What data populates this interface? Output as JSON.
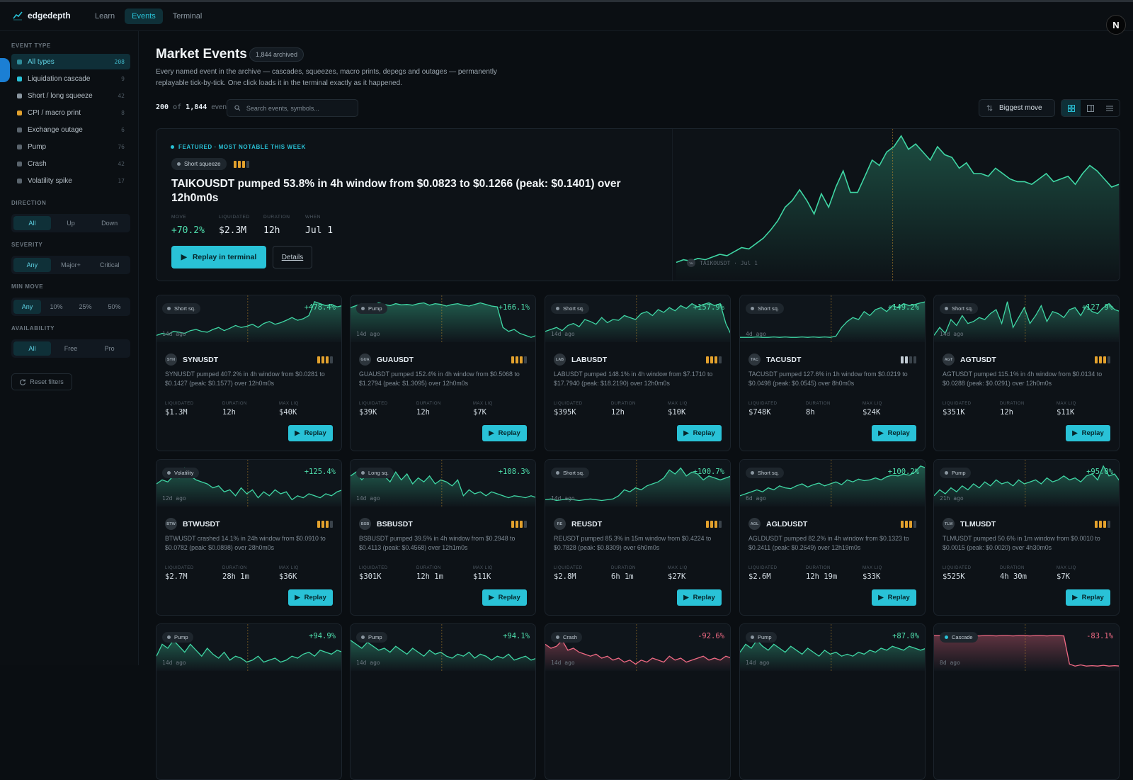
{
  "app": {
    "name": "edgedepth",
    "avatar_letter": "N"
  },
  "nav": [
    {
      "label": "Learn"
    },
    {
      "label": "Events"
    },
    {
      "label": "Terminal"
    }
  ],
  "sidebar": {
    "event_type_heading": "EVENT TYPE",
    "event_types": [
      {
        "label": "All types",
        "count": "208",
        "color": "#2e8c9a"
      },
      {
        "label": "Liquidation cascade",
        "count": "9",
        "color": "#29c2d7"
      },
      {
        "label": "Short / long squeeze",
        "count": "42",
        "color": "#8a96a0"
      },
      {
        "label": "CPI / macro print",
        "count": "8",
        "color": "#e2a12d"
      },
      {
        "label": "Exchange outage",
        "count": "6",
        "color": "#5a646d"
      },
      {
        "label": "Pump",
        "count": "76",
        "color": "#5a646d"
      },
      {
        "label": "Crash",
        "count": "42",
        "color": "#5a646d"
      },
      {
        "label": "Volatility spike",
        "count": "17",
        "color": "#5a646d"
      }
    ],
    "direction_heading": "DIRECTION",
    "direction": [
      "All",
      "Up",
      "Down"
    ],
    "severity_heading": "SEVERITY",
    "severity": [
      "Any",
      "Major+",
      "Critical"
    ],
    "min_move_heading": "MIN MOVE",
    "min_move": [
      "Any",
      "10%",
      "25%",
      "50%"
    ],
    "availability_heading": "AVAILABILITY",
    "availability": [
      "All",
      "Free",
      "Pro"
    ],
    "reset_label": "Reset filters"
  },
  "header": {
    "title": "Market Events",
    "archived": "1,844 archived",
    "description": "Every named event in the archive — cascades, squeezes, macro prints, depegs and outages — permanently replayable tick-by-tick. One click loads it in the terminal exactly as it happened.",
    "shown": "200",
    "of": "of",
    "total": "1,844",
    "events_word": "events",
    "search_placeholder": "Search events, symbols...",
    "sort_label": "Biggest move"
  },
  "featured": {
    "tag": "FEATURED · MOST NOTABLE THIS WEEK",
    "pill": "Short squeeze",
    "title": "TAIKOUSDT pumped 53.8% in 4h window from $0.0823 to $0.1266 (peak: $0.1401) over 12h0m0s",
    "stats": [
      {
        "label": "MOVE",
        "value": "+70.2%"
      },
      {
        "label": "LIQUIDATED",
        "value": "$2.3M"
      },
      {
        "label": "DURATION",
        "value": "12h"
      },
      {
        "label": "WHEN",
        "value": "Jul 1"
      }
    ],
    "replay_label": "Replay in terminal",
    "details_label": "Details",
    "chart_label": "TAIKOUSDT · Jul 1",
    "coin": "TAI",
    "series": [
      0.04,
      0.06,
      0.05,
      0.07,
      0.06,
      0.08,
      0.1,
      0.09,
      0.12,
      0.15,
      0.14,
      0.18,
      0.22,
      0.28,
      0.35,
      0.45,
      0.5,
      0.58,
      0.5,
      0.4,
      0.55,
      0.45,
      0.6,
      0.72,
      0.56,
      0.56,
      0.68,
      0.8,
      0.76,
      0.86,
      0.9,
      0.98,
      0.88,
      0.92,
      0.86,
      0.8,
      0.9,
      0.84,
      0.82,
      0.74,
      0.78,
      0.7,
      0.7,
      0.68,
      0.74,
      0.7,
      0.66,
      0.64,
      0.64,
      0.62,
      0.66,
      0.7,
      0.64,
      0.66,
      0.68,
      0.62,
      0.7,
      0.76,
      0.72,
      0.66,
      0.6,
      0.62
    ]
  },
  "cards": [
    {
      "type": "Short sq.",
      "ago": "14d ago",
      "pct": "+478.4%",
      "symbol": "SYNUSDT",
      "coin": "SYN",
      "sev": "orange3",
      "desc": "SYNUSDT pumped 407.2% in 4h window from $0.0281 to $0.1427 (peak: $0.1577) over 12h0m0s",
      "liq": "$1.3M",
      "dur": "12h",
      "max": "$40K",
      "series": [
        0.1,
        0.15,
        0.12,
        0.2,
        0.18,
        0.15,
        0.22,
        0.25,
        0.2,
        0.18,
        0.25,
        0.3,
        0.22,
        0.28,
        0.35,
        0.3,
        0.33,
        0.38,
        0.3,
        0.4,
        0.45,
        0.38,
        0.42,
        0.48,
        0.55,
        0.48,
        0.52,
        0.6,
        0.95,
        0.9,
        0.85,
        0.88,
        0.82,
        0.85
      ]
    },
    {
      "type": "Pump",
      "ago": "14d ago",
      "pct": "+166.1%",
      "symbol": "GUAUSDT",
      "coin": "GUA",
      "sev": "orange3",
      "desc": "GUAUSDT pumped 152.4% in 4h window from $0.5068 to $1.2794 (peak: $1.3095) over 12h0m0s",
      "liq": "$39K",
      "dur": "12h",
      "max": "$7K",
      "series": [
        0.8,
        0.85,
        0.9,
        0.82,
        0.86,
        0.92,
        0.88,
        0.85,
        0.9,
        0.87,
        0.88,
        0.86,
        0.9,
        0.92,
        0.86,
        0.9,
        0.88,
        0.84,
        0.88,
        0.9,
        0.86,
        0.84,
        0.88,
        0.92,
        0.88,
        0.84,
        0.82,
        0.3,
        0.2,
        0.25,
        0.15,
        0.1,
        0.05,
        0.1
      ]
    },
    {
      "type": "Short sq.",
      "ago": "14d ago",
      "pct": "+157.9%",
      "symbol": "LABUSDT",
      "coin": "LAB",
      "sev": "orange3",
      "desc": "LABUSDT pumped 148.1% in 4h window from $7.1710 to $17.7940 (peak: $18.2190) over 12h0m0s",
      "liq": "$395K",
      "dur": "12h",
      "max": "$10K",
      "series": [
        0.2,
        0.25,
        0.3,
        0.22,
        0.35,
        0.4,
        0.32,
        0.5,
        0.45,
        0.38,
        0.55,
        0.42,
        0.5,
        0.48,
        0.6,
        0.55,
        0.5,
        0.65,
        0.7,
        0.6,
        0.75,
        0.68,
        0.8,
        0.72,
        0.85,
        0.78,
        0.9,
        0.82,
        0.88,
        0.92,
        0.85,
        0.9,
        0.4,
        0.1
      ]
    },
    {
      "type": "Short sq.",
      "ago": "4d ago",
      "pct": "+149.2%",
      "symbol": "TACUSDT",
      "coin": "TAC",
      "sev": "white2",
      "desc": "TACUSDT pumped 127.6% in 1h window from $0.0219 to $0.0498 (peak: $0.0545) over 8h0m0s",
      "liq": "$748K",
      "dur": "8h",
      "max": "$24K",
      "series": [
        0.05,
        0.05,
        0.05,
        0.06,
        0.05,
        0.05,
        0.06,
        0.05,
        0.06,
        0.05,
        0.05,
        0.06,
        0.05,
        0.06,
        0.05,
        0.06,
        0.05,
        0.08,
        0.3,
        0.45,
        0.55,
        0.5,
        0.7,
        0.6,
        0.75,
        0.8,
        0.7,
        0.85,
        0.8,
        0.9,
        0.85,
        0.88,
        0.92,
        0.95
      ]
    },
    {
      "type": "Short sq.",
      "ago": "14d ago",
      "pct": "+127.9%",
      "symbol": "AGTUSDT",
      "coin": "AGT",
      "sev": "orange3",
      "desc": "AGTUSDT pumped 115.1% in 4h window from $0.0134 to $0.0288 (peak: $0.0291) over 12h0m0s",
      "liq": "$351K",
      "dur": "12h",
      "max": "$11K",
      "series": [
        0.1,
        0.3,
        0.15,
        0.5,
        0.35,
        0.6,
        0.4,
        0.45,
        0.55,
        0.5,
        0.65,
        0.75,
        0.4,
        0.95,
        0.3,
        0.55,
        0.8,
        0.4,
        0.6,
        0.85,
        0.45,
        0.7,
        0.65,
        0.55,
        0.75,
        0.8,
        0.6,
        0.85,
        0.7,
        0.65,
        0.8,
        0.9,
        0.75,
        0.7
      ]
    },
    {
      "type": "Volatility",
      "ago": "12d ago",
      "pct": "+125.4%",
      "symbol": "BTWUSDT",
      "coin": "BTW",
      "sev": "orange3",
      "desc": "BTWUSDT crashed 14.1% in 24h window from $0.0910 to $0.0782 (peak: $0.0898) over 28h0m0s",
      "liq": "$2.7M",
      "dur": "28h 1m",
      "max": "$36K",
      "series": [
        0.5,
        0.6,
        0.55,
        0.7,
        0.65,
        0.9,
        0.7,
        0.6,
        0.55,
        0.5,
        0.4,
        0.45,
        0.3,
        0.35,
        0.2,
        0.4,
        0.25,
        0.35,
        0.15,
        0.3,
        0.2,
        0.35,
        0.25,
        0.3,
        0.1,
        0.2,
        0.15,
        0.25,
        0.2,
        0.15,
        0.25,
        0.2,
        0.3,
        0.35
      ]
    },
    {
      "type": "Long sq.",
      "ago": "14d ago",
      "pct": "+108.3%",
      "symbol": "BSBUSDT",
      "coin": "BSB",
      "sev": "orange3",
      "desc": "BSBUSDT pumped 39.5% in 4h window from $0.2948 to $0.4113 (peak: $0.4568) over 12h1m0s",
      "liq": "$301K",
      "dur": "12h 1m",
      "max": "$11K",
      "series": [
        0.7,
        0.8,
        0.6,
        0.75,
        0.65,
        0.85,
        0.7,
        0.55,
        0.8,
        0.6,
        0.75,
        0.5,
        0.65,
        0.55,
        0.7,
        0.5,
        0.6,
        0.55,
        0.45,
        0.6,
        0.2,
        0.35,
        0.25,
        0.3,
        0.2,
        0.3,
        0.25,
        0.2,
        0.15,
        0.2,
        0.18,
        0.15,
        0.2,
        0.15
      ]
    },
    {
      "type": "Short sq.",
      "ago": "14d ago",
      "pct": "+100.7%",
      "symbol": "REUSDT",
      "coin": "RE",
      "sev": "orange3",
      "desc": "REUSDT pumped 85.3% in 15m window from $0.4224 to $0.7828 (peak: $0.8309) over 6h0m0s",
      "liq": "$2.8M",
      "dur": "6h 1m",
      "max": "$27K",
      "series": [
        0.1,
        0.12,
        0.08,
        0.1,
        0.12,
        0.1,
        0.08,
        0.1,
        0.12,
        0.1,
        0.08,
        0.1,
        0.12,
        0.2,
        0.35,
        0.3,
        0.4,
        0.35,
        0.45,
        0.5,
        0.55,
        0.65,
        0.85,
        0.75,
        0.9,
        0.7,
        0.8,
        0.75,
        0.6,
        0.7,
        0.65,
        0.6,
        0.65,
        0.7
      ]
    },
    {
      "type": "Short sq.",
      "ago": "6d ago",
      "pct": "+100.2%",
      "symbol": "AGLDUSDT",
      "coin": "AGL",
      "sev": "orange3",
      "desc": "AGLDUSDT pumped 82.2% in 4h window from $0.1323 to $0.2411 (peak: $0.2649) over 12h19m0s",
      "liq": "$2.6M",
      "dur": "12h 19m",
      "max": "$33K",
      "series": [
        0.2,
        0.25,
        0.3,
        0.35,
        0.3,
        0.4,
        0.35,
        0.45,
        0.4,
        0.38,
        0.45,
        0.5,
        0.42,
        0.48,
        0.52,
        0.45,
        0.5,
        0.55,
        0.48,
        0.6,
        0.55,
        0.62,
        0.58,
        0.6,
        0.65,
        0.6,
        0.68,
        0.72,
        0.7,
        0.75,
        0.72,
        0.8,
        0.95,
        0.9
      ]
    },
    {
      "type": "Pump",
      "ago": "21h ago",
      "pct": "+95.0%",
      "symbol": "TLMUSDT",
      "coin": "TLM",
      "sev": "orange3",
      "desc": "TLMUSDT pumped 50.6% in 1m window from $0.0010 to $0.0015 (peak: $0.0020) over 4h30m0s",
      "liq": "$525K",
      "dur": "4h 30m",
      "max": "$7K",
      "series": [
        0.2,
        0.35,
        0.25,
        0.4,
        0.3,
        0.45,
        0.35,
        0.5,
        0.4,
        0.55,
        0.45,
        0.6,
        0.5,
        0.55,
        0.45,
        0.6,
        0.5,
        0.55,
        0.6,
        0.5,
        0.65,
        0.55,
        0.6,
        0.7,
        0.6,
        0.65,
        0.55,
        0.7,
        0.75,
        0.6,
        0.95,
        0.7,
        0.75,
        0.55
      ]
    },
    {
      "type": "Pump",
      "ago": "14d ago",
      "pct": "+94.9%",
      "symbol": "",
      "coin": "",
      "sev": "",
      "desc": "",
      "liq": "",
      "dur": "",
      "max": "",
      "series": [
        0.3,
        0.6,
        0.5,
        0.7,
        0.55,
        0.4,
        0.6,
        0.45,
        0.3,
        0.5,
        0.35,
        0.25,
        0.4,
        0.2,
        0.3,
        0.25,
        0.15,
        0.2,
        0.3,
        0.15,
        0.2,
        0.25,
        0.15,
        0.2,
        0.3,
        0.25,
        0.35,
        0.4,
        0.3,
        0.45,
        0.4,
        0.35,
        0.45,
        0.4
      ]
    },
    {
      "type": "Pump",
      "ago": "14d ago",
      "pct": "+94.1%",
      "symbol": "",
      "coin": "",
      "sev": "",
      "desc": "",
      "liq": "",
      "dur": "",
      "max": "",
      "series": [
        0.7,
        0.6,
        0.5,
        0.65,
        0.55,
        0.45,
        0.5,
        0.4,
        0.55,
        0.45,
        0.35,
        0.5,
        0.4,
        0.3,
        0.45,
        0.35,
        0.4,
        0.3,
        0.25,
        0.35,
        0.3,
        0.4,
        0.25,
        0.35,
        0.3,
        0.2,
        0.3,
        0.25,
        0.35,
        0.2,
        0.25,
        0.3,
        0.2,
        0.25
      ]
    },
    {
      "type": "Crash",
      "ago": "14d ago",
      "pct": "-92.6%",
      "symbol": "",
      "coin": "",
      "sev": "",
      "desc": "",
      "liq": "",
      "dur": "",
      "max": "",
      "series": [
        0.6,
        0.5,
        0.55,
        0.7,
        0.45,
        0.5,
        0.4,
        0.35,
        0.3,
        0.35,
        0.25,
        0.3,
        0.2,
        0.25,
        0.15,
        0.2,
        0.1,
        0.2,
        0.15,
        0.25,
        0.2,
        0.15,
        0.3,
        0.2,
        0.25,
        0.15,
        0.2,
        0.25,
        0.3,
        0.2,
        0.25,
        0.2,
        0.3,
        0.25
      ]
    },
    {
      "type": "Pump",
      "ago": "14d ago",
      "pct": "+87.0%",
      "symbol": "",
      "coin": "",
      "sev": "",
      "desc": "",
      "liq": "",
      "dur": "",
      "max": "",
      "series": [
        0.4,
        0.6,
        0.5,
        0.7,
        0.55,
        0.45,
        0.6,
        0.5,
        0.4,
        0.55,
        0.45,
        0.35,
        0.5,
        0.4,
        0.3,
        0.45,
        0.35,
        0.4,
        0.3,
        0.35,
        0.3,
        0.4,
        0.35,
        0.45,
        0.4,
        0.5,
        0.45,
        0.55,
        0.5,
        0.45,
        0.55,
        0.5,
        0.45,
        0.5
      ]
    },
    {
      "type": "Cascade",
      "ago": "8d ago",
      "pct": "-83.1%",
      "symbol": "",
      "coin": "",
      "sev": "",
      "desc": "",
      "liq": "",
      "dur": "",
      "max": "",
      "series": [
        0.82,
        0.82,
        0.81,
        0.82,
        0.82,
        0.81,
        0.82,
        0.82,
        0.81,
        0.82,
        0.82,
        0.81,
        0.82,
        0.82,
        0.81,
        0.82,
        0.82,
        0.81,
        0.82,
        0.82,
        0.81,
        0.82,
        0.82,
        0.81,
        0.1,
        0.05,
        0.08,
        0.05,
        0.06,
        0.05,
        0.07,
        0.05,
        0.06,
        0.05
      ]
    }
  ],
  "card_labels": {
    "liq": "LIQUIDATED",
    "dur": "DURATION",
    "max": "MAX LIQ",
    "replay": "Replay"
  },
  "colors": {
    "accent": "#29c2d7",
    "up": "#4fe0ae",
    "down": "#f06a84",
    "severity": "#e2a12d"
  }
}
